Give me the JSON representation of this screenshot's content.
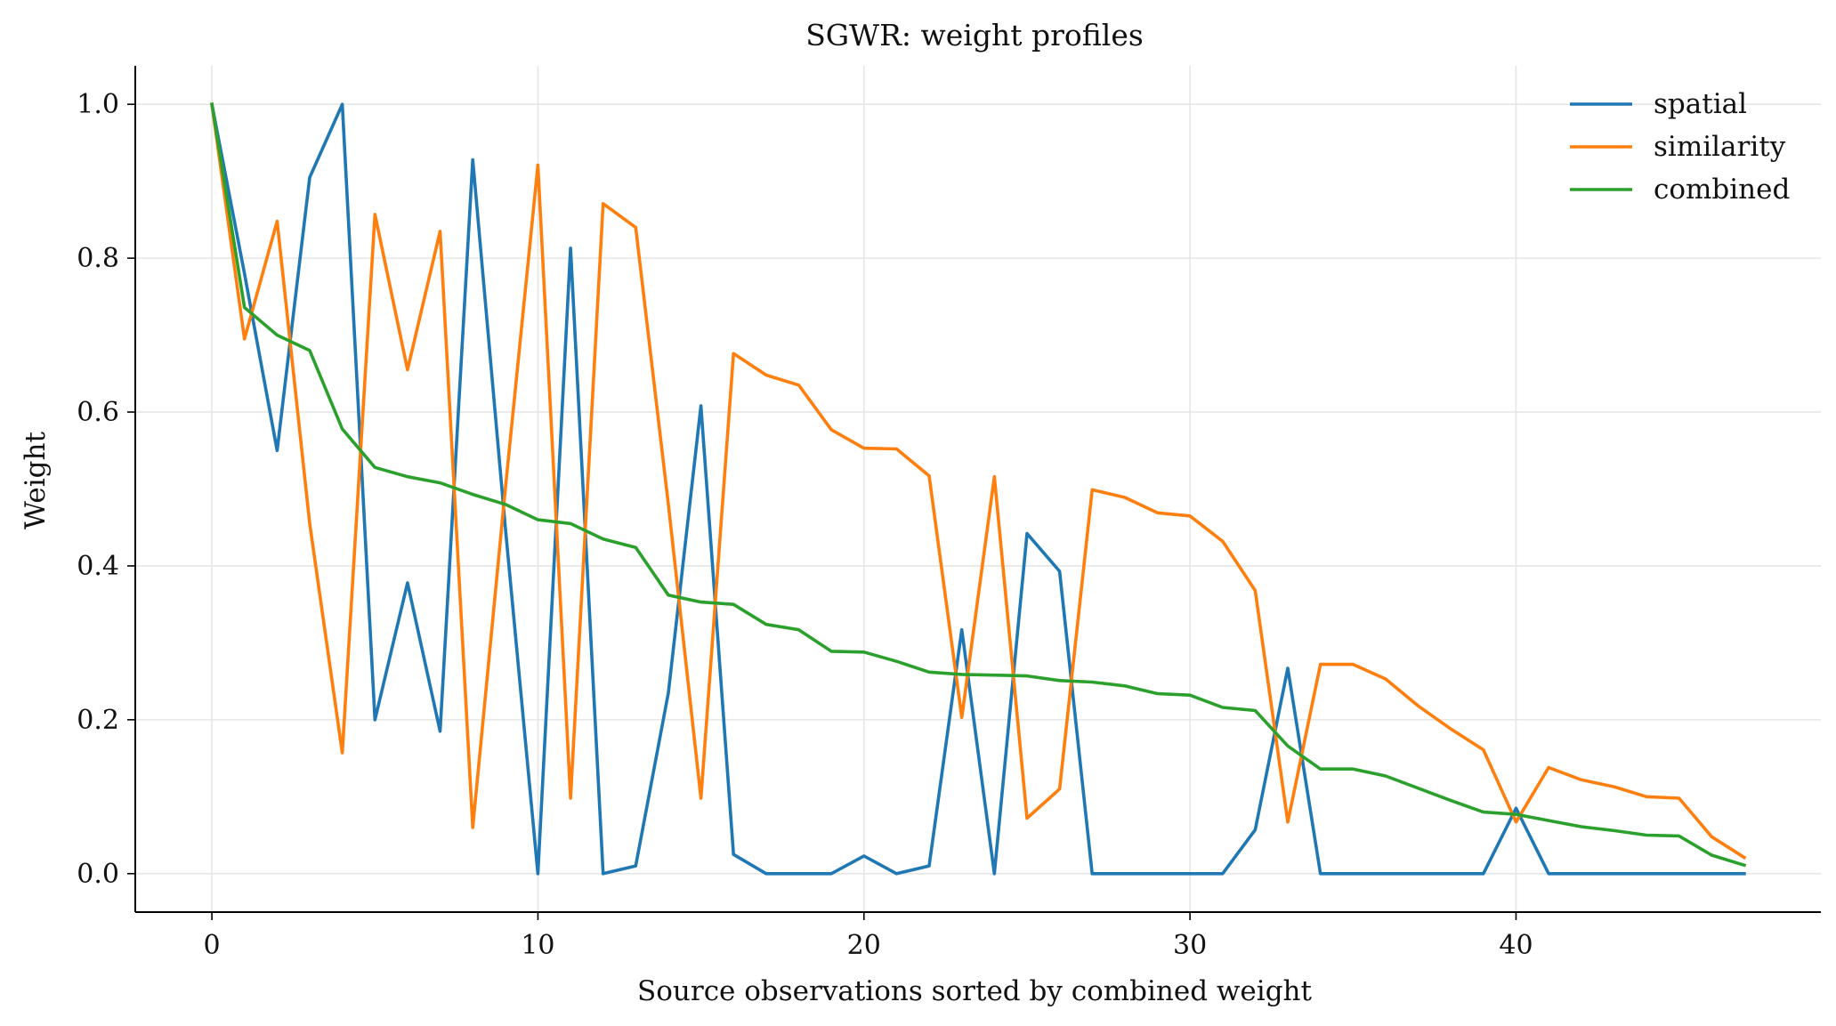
{
  "chart_data": {
    "type": "line",
    "title": "SGWR: weight profiles",
    "xlabel": "Source observations sorted by combined weight",
    "ylabel": "Weight",
    "xlim": [
      -2.35,
      49.35
    ],
    "ylim": [
      -0.05,
      1.05
    ],
    "xticks": [
      0,
      10,
      20,
      30,
      40
    ],
    "yticks": [
      0.0,
      0.2,
      0.4,
      0.6,
      0.8,
      1.0
    ],
    "ytick_labels": [
      "0.0",
      "0.2",
      "0.4",
      "0.6",
      "0.8",
      "1.0"
    ],
    "grid": true,
    "legend_position": "top-right",
    "x": [
      0,
      1,
      2,
      3,
      4,
      5,
      6,
      7,
      8,
      9,
      10,
      11,
      12,
      13,
      14,
      15,
      16,
      17,
      18,
      19,
      20,
      21,
      22,
      23,
      24,
      25,
      26,
      27,
      28,
      29,
      30,
      31,
      32,
      33,
      34,
      35,
      36,
      37,
      38,
      39,
      40,
      41,
      42,
      43,
      44,
      45,
      46,
      47
    ],
    "series": [
      {
        "name": "spatial",
        "color": "#1f77b4",
        "values": [
          1.0,
          0.78,
          0.55,
          0.905,
          1.0,
          0.2,
          0.378,
          0.185,
          0.928,
          0.45,
          0.0,
          0.813,
          0.0,
          0.01,
          0.235,
          0.608,
          0.025,
          0.0,
          0.0,
          0.0,
          0.023,
          0.0,
          0.01,
          0.317,
          0.0,
          0.442,
          0.393,
          0.0,
          0.0,
          0.0,
          0.0,
          0.0,
          0.057,
          0.267,
          0.0,
          0.0,
          0.0,
          0.0,
          0.0,
          0.0,
          0.085,
          0.0,
          0.0,
          0.0,
          0.0,
          0.0,
          0.0,
          0.0
        ]
      },
      {
        "name": "similarity",
        "color": "#ff7f0e",
        "values": [
          1.0,
          0.695,
          0.848,
          0.455,
          0.157,
          0.857,
          0.655,
          0.835,
          0.06,
          0.5,
          0.921,
          0.098,
          0.871,
          0.84,
          0.48,
          0.098,
          0.676,
          0.648,
          0.635,
          0.577,
          0.553,
          0.552,
          0.517,
          0.203,
          0.516,
          0.072,
          0.11,
          0.499,
          0.489,
          0.469,
          0.465,
          0.432,
          0.368,
          0.067,
          0.272,
          0.272,
          0.253,
          0.218,
          0.188,
          0.161,
          0.067,
          0.138,
          0.122,
          0.113,
          0.1,
          0.098,
          0.048,
          0.021
        ]
      },
      {
        "name": "combined",
        "color": "#2ca02c",
        "values": [
          1.0,
          0.736,
          0.7,
          0.68,
          0.578,
          0.528,
          0.516,
          0.508,
          0.493,
          0.48,
          0.46,
          0.455,
          0.435,
          0.424,
          0.362,
          0.353,
          0.35,
          0.324,
          0.317,
          0.289,
          0.288,
          0.276,
          0.262,
          0.259,
          0.258,
          0.257,
          0.251,
          0.249,
          0.244,
          0.234,
          0.232,
          0.216,
          0.212,
          0.166,
          0.136,
          0.136,
          0.127,
          0.111,
          0.095,
          0.08,
          0.077,
          0.069,
          0.061,
          0.056,
          0.05,
          0.049,
          0.024,
          0.011
        ]
      }
    ]
  }
}
